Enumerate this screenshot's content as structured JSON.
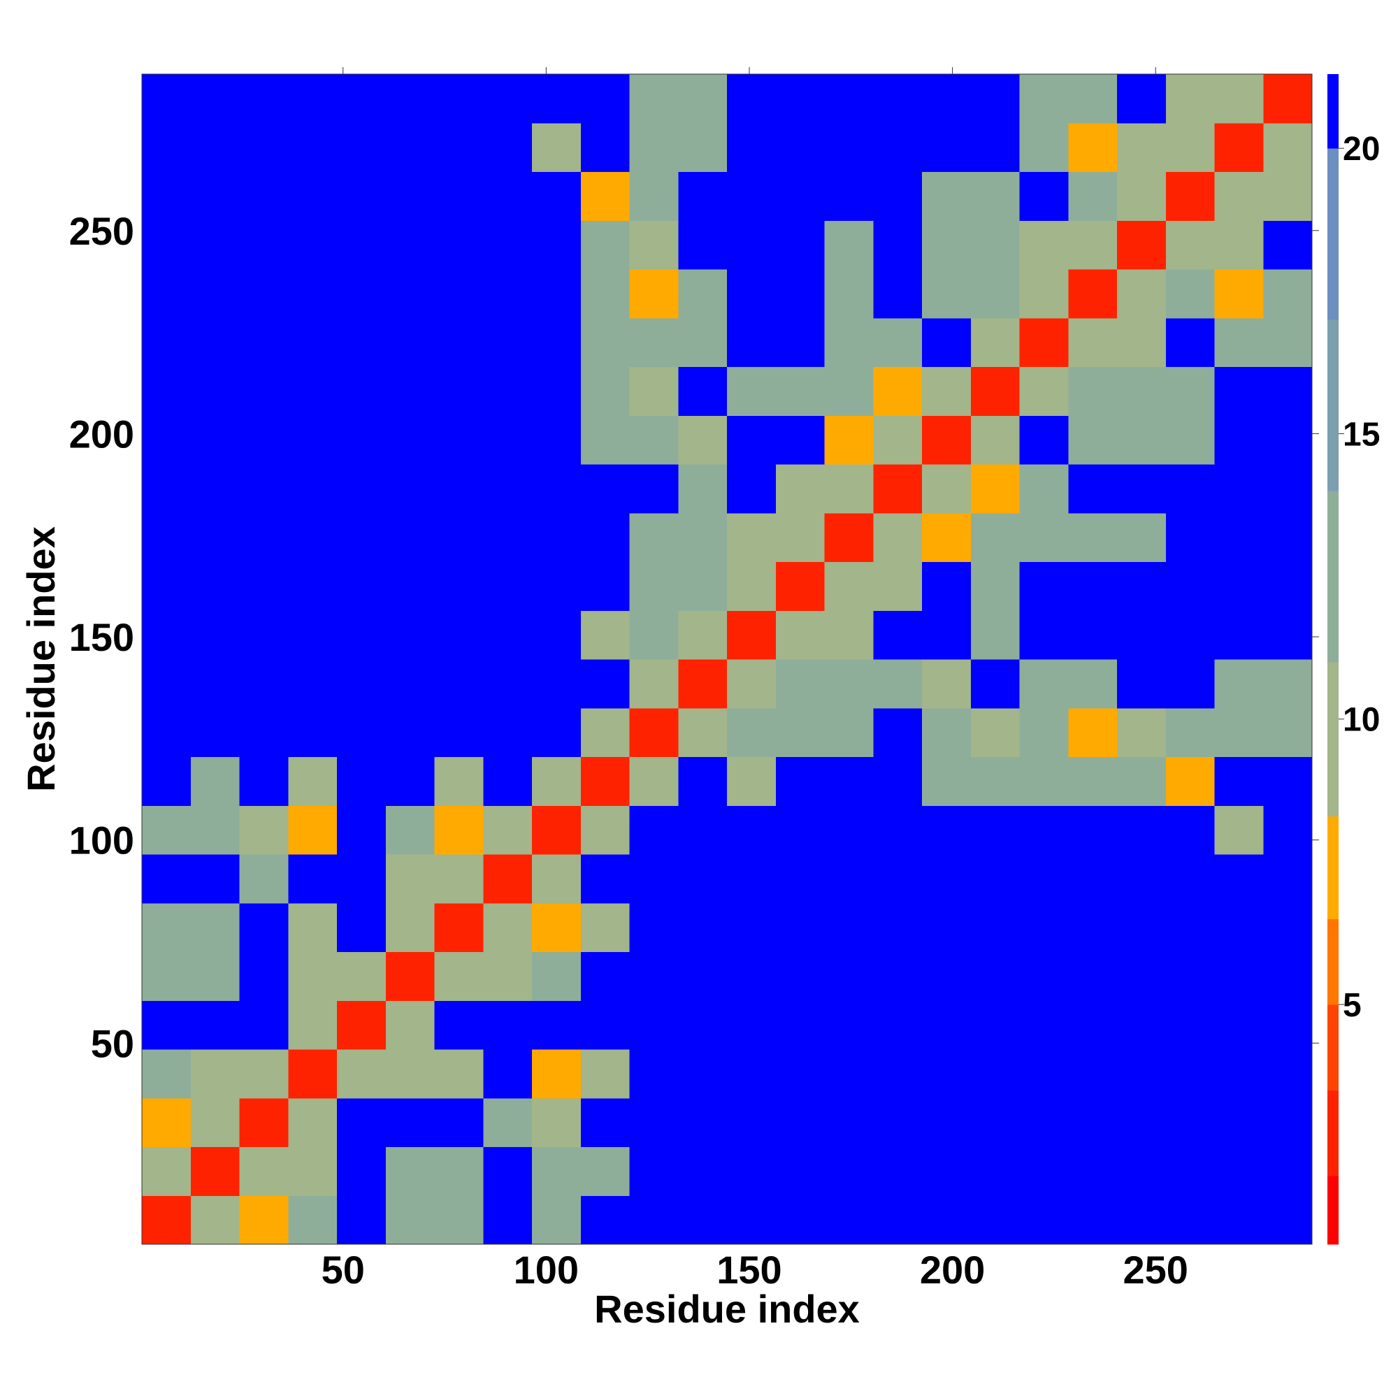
{
  "chart_data": {
    "type": "heatmap",
    "xlabel": "Residue index",
    "ylabel": "Residue index",
    "xlim": [
      0.5,
      288.5
    ],
    "ylim": [
      0.5,
      288.5
    ],
    "xticks": [
      50,
      100,
      150,
      200,
      250
    ],
    "yticks": [
      50,
      100,
      150,
      200,
      250
    ],
    "bin_edges": [
      0.5,
      12.5,
      24.5,
      36.5,
      48.5,
      60.5,
      72.5,
      84.5,
      96.5,
      108.5,
      120.5,
      132.5,
      144.5,
      156.5,
      168.5,
      180.5,
      192.5,
      204.5,
      216.5,
      228.5,
      240.5,
      252.5,
      264.5,
      276.5,
      288.5
    ],
    "color_levels": [
      0.8,
      2,
      3.5,
      5,
      6.5,
      8.3,
      11,
      14,
      17,
      20,
      21.3
    ],
    "colors": [
      "#ff0000",
      "#ff2200",
      "#ff4400",
      "#ff7700",
      "#ffaa00",
      "#a3b58a",
      "#8fae9a",
      "#7c9fb0",
      "#6d8fc0",
      "#0000ff"
    ],
    "cticks": [
      5,
      10,
      15,
      20
    ],
    "values": [
      [
        2,
        10,
        7,
        12,
        21,
        12,
        12,
        21,
        12,
        21,
        21,
        21,
        21,
        21,
        21,
        21,
        21,
        21,
        21,
        21,
        21,
        21,
        21,
        21
      ],
      [
        10,
        2,
        10,
        10,
        21,
        12,
        12,
        21,
        12,
        12,
        21,
        21,
        21,
        21,
        21,
        21,
        21,
        21,
        21,
        21,
        21,
        21,
        21,
        21
      ],
      [
        7,
        10,
        2,
        10,
        21,
        21,
        21,
        12,
        10,
        21,
        21,
        21,
        21,
        21,
        21,
        21,
        21,
        21,
        21,
        21,
        21,
        21,
        21,
        21
      ],
      [
        12,
        10,
        10,
        2,
        10,
        10,
        10,
        21,
        7,
        10,
        21,
        21,
        21,
        21,
        21,
        21,
        21,
        21,
        21,
        21,
        21,
        21,
        21,
        21
      ],
      [
        21,
        21,
        21,
        10,
        2,
        10,
        21,
        21,
        21,
        21,
        21,
        21,
        21,
        21,
        21,
        21,
        21,
        21,
        21,
        21,
        21,
        21,
        21,
        21
      ],
      [
        12,
        12,
        21,
        10,
        10,
        2,
        10,
        10,
        12,
        21,
        21,
        21,
        21,
        21,
        21,
        21,
        21,
        21,
        21,
        21,
        21,
        21,
        21,
        21
      ],
      [
        12,
        12,
        21,
        10,
        21,
        10,
        2,
        10,
        7,
        10,
        21,
        21,
        21,
        21,
        21,
        21,
        21,
        21,
        21,
        21,
        21,
        21,
        21,
        21
      ],
      [
        21,
        21,
        12,
        21,
        21,
        10,
        10,
        2,
        10,
        21,
        21,
        21,
        21,
        21,
        21,
        21,
        21,
        21,
        21,
        21,
        21,
        21,
        21,
        21
      ],
      [
        12,
        12,
        10,
        7,
        21,
        12,
        7,
        10,
        2,
        10,
        21,
        21,
        21,
        21,
        21,
        21,
        21,
        21,
        21,
        21,
        21,
        21,
        10,
        21
      ],
      [
        21,
        12,
        21,
        10,
        21,
        21,
        10,
        21,
        10,
        2,
        10,
        21,
        10,
        21,
        21,
        21,
        12,
        12,
        12,
        12,
        12,
        7,
        21,
        21
      ],
      [
        21,
        21,
        21,
        21,
        21,
        21,
        21,
        21,
        21,
        10,
        2,
        10,
        12,
        12,
        12,
        21,
        12,
        10,
        12,
        7,
        10,
        12,
        12,
        12
      ],
      [
        21,
        21,
        21,
        21,
        21,
        21,
        21,
        21,
        21,
        21,
        10,
        2,
        10,
        12,
        12,
        12,
        10,
        21,
        12,
        12,
        21,
        21,
        12,
        12
      ],
      [
        21,
        21,
        21,
        21,
        21,
        21,
        21,
        21,
        21,
        10,
        12,
        10,
        2,
        10,
        10,
        21,
        21,
        12,
        21,
        21,
        21,
        21,
        21,
        21
      ],
      [
        21,
        21,
        21,
        21,
        21,
        21,
        21,
        21,
        21,
        21,
        12,
        12,
        10,
        2,
        10,
        10,
        21,
        12,
        21,
        21,
        21,
        21,
        21,
        21
      ],
      [
        21,
        21,
        21,
        21,
        21,
        21,
        21,
        21,
        21,
        21,
        12,
        12,
        10,
        10,
        2,
        10,
        7,
        12,
        12,
        12,
        12,
        21,
        21,
        21
      ],
      [
        21,
        21,
        21,
        21,
        21,
        21,
        21,
        21,
        21,
        21,
        21,
        12,
        21,
        10,
        10,
        2,
        10,
        7,
        12,
        21,
        21,
        21,
        21,
        21
      ],
      [
        21,
        21,
        21,
        21,
        21,
        21,
        21,
        21,
        21,
        12,
        12,
        10,
        21,
        21,
        7,
        10,
        2,
        10,
        21,
        12,
        12,
        12,
        21,
        21
      ],
      [
        21,
        21,
        21,
        21,
        21,
        21,
        21,
        21,
        21,
        12,
        10,
        21,
        12,
        12,
        12,
        7,
        10,
        2,
        10,
        12,
        12,
        12,
        21,
        21
      ],
      [
        21,
        21,
        21,
        21,
        21,
        21,
        21,
        21,
        21,
        12,
        12,
        12,
        21,
        21,
        12,
        12,
        21,
        10,
        2,
        10,
        10,
        21,
        12,
        12
      ],
      [
        21,
        21,
        21,
        21,
        21,
        21,
        21,
        21,
        21,
        12,
        7,
        12,
        21,
        21,
        12,
        21,
        12,
        12,
        10,
        2,
        10,
        12,
        7,
        12
      ],
      [
        21,
        21,
        21,
        21,
        21,
        21,
        21,
        21,
        21,
        12,
        10,
        21,
        21,
        21,
        12,
        21,
        12,
        12,
        10,
        10,
        2,
        10,
        10,
        21
      ],
      [
        21,
        21,
        21,
        21,
        21,
        21,
        21,
        21,
        21,
        7,
        12,
        21,
        21,
        21,
        21,
        21,
        12,
        12,
        21,
        12,
        10,
        2,
        10,
        10
      ],
      [
        21,
        21,
        21,
        21,
        21,
        21,
        21,
        21,
        10,
        21,
        12,
        12,
        21,
        21,
        21,
        21,
        21,
        21,
        12,
        7,
        10,
        10,
        2,
        10
      ],
      [
        21,
        21,
        21,
        21,
        21,
        21,
        21,
        21,
        21,
        21,
        12,
        12,
        21,
        21,
        21,
        21,
        21,
        21,
        12,
        12,
        21,
        10,
        10,
        2
      ]
    ]
  }
}
